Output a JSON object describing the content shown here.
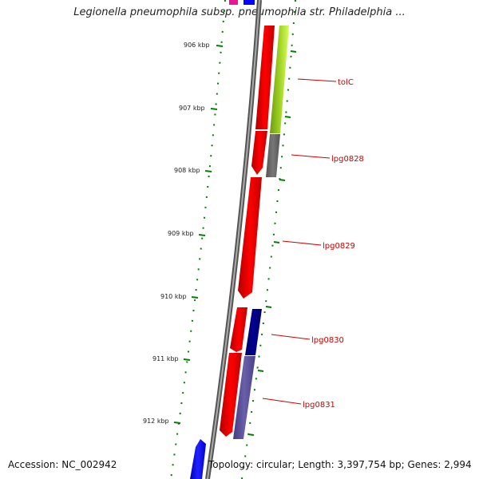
{
  "title": "Legionella pneumophila subsp. pneumophila str. Philadelphia ...",
  "ruler": [
    "906 kbp",
    "907 kbp",
    "908 kbp",
    "909 kbp",
    "910 kbp",
    "911 kbp",
    "912 kbp"
  ],
  "genes": {
    "g1": "tolC",
    "g2": "lpg0828",
    "g3": "lpg0829",
    "g4": "lpg0830",
    "g5": "lpg0831"
  },
  "footer": {
    "accession": "Accession: NC_002942",
    "topology": "Topology: circular; Length: 3,397,754 bp; Genes: 2,994"
  },
  "colors": {
    "forward_cds": "#ff0000",
    "tolC_track": "#99dd22",
    "lpg0828_track": "#666666",
    "lpg0830_track": "#000080",
    "lpg0831_track": "#5a4f9a",
    "other_gene_blue": "#0000ff",
    "other_gene_pink": "#ee1199",
    "backbone": "#888888",
    "ticks": "#008000",
    "labels": "#cc0000"
  }
}
